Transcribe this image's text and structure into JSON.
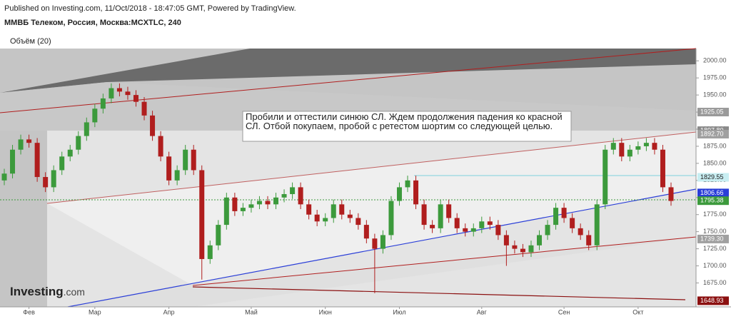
{
  "chart_data": {
    "type": "candlestick",
    "header": "Published on Investing.com, 11/Oct/2018 - 18:47:05 GMT, Powered by TradingView.",
    "title": "ММВБ Телеком, Россия, Москва:MCXTLC, 240",
    "subtitle": "Объём (20)",
    "annotation": "Пробили и оттестили синюю СЛ. Ждем продолжения падения ко красной СЛ. Отбой покупаем, пробой с ретестом шортим со следующей целью.",
    "logo": "Investing",
    "logo_suffix": ".com",
    "categories": [
      null,
      null,
      null,
      "Фев",
      null,
      null,
      null,
      null,
      null,
      null,
      null,
      "Мар",
      null,
      null,
      null,
      null,
      null,
      null,
      null,
      null,
      "Апр",
      null,
      null,
      null,
      null,
      null,
      null,
      null,
      null,
      null,
      "Май",
      null,
      null,
      null,
      null,
      null,
      null,
      null,
      null,
      "Июн",
      null,
      null,
      null,
      null,
      null,
      null,
      null,
      null,
      "Июл",
      null,
      null,
      null,
      null,
      null,
      null,
      null,
      null,
      null,
      "Авг",
      null,
      null,
      null,
      null,
      null,
      null,
      null,
      null,
      null,
      "Сен",
      null,
      null,
      null,
      null,
      null,
      null,
      null,
      null,
      "Окт",
      null,
      null,
      null,
      null
    ],
    "open": [
      1825,
      1835,
      1870,
      1885,
      1880,
      1830,
      1815,
      1840,
      1860,
      1870,
      1890,
      1910,
      1930,
      1945,
      1960,
      1955,
      1950,
      1940,
      1920,
      1890,
      1860,
      1825,
      1840,
      1870,
      1840,
      1710,
      1730,
      1760,
      1800,
      1780,
      1785,
      1790,
      1795,
      1790,
      1800,
      1805,
      1815,
      1790,
      1775,
      1765,
      1770,
      1790,
      1775,
      1770,
      1760,
      1740,
      1725,
      1745,
      1795,
      1815,
      1825,
      1790,
      1760,
      1755,
      1790,
      1770,
      1755,
      1750,
      1755,
      1765,
      1760,
      1745,
      1730,
      1725,
      1720,
      1730,
      1745,
      1760,
      1785,
      1770,
      1755,
      1745,
      1730,
      1790,
      1870,
      1880,
      1860,
      1870,
      1875,
      1880,
      1870,
      1815
    ],
    "high": [
      1842,
      1877,
      1892,
      1892,
      1887,
      1837,
      1847,
      1867,
      1877,
      1897,
      1917,
      1937,
      1952,
      1967,
      1967,
      1962,
      1957,
      1947,
      1927,
      1897,
      1867,
      1847,
      1877,
      1877,
      1847,
      1737,
      1767,
      1807,
      1807,
      1792,
      1797,
      1802,
      1802,
      1807,
      1812,
      1822,
      1822,
      1797,
      1782,
      1777,
      1797,
      1797,
      1782,
      1777,
      1767,
      1747,
      1752,
      1802,
      1822,
      1832,
      1832,
      1797,
      1767,
      1797,
      1797,
      1777,
      1762,
      1762,
      1772,
      1772,
      1767,
      1752,
      1737,
      1732,
      1737,
      1752,
      1767,
      1792,
      1792,
      1777,
      1762,
      1752,
      1797,
      1877,
      1887,
      1887,
      1877,
      1882,
      1887,
      1887,
      1877,
      1822
    ],
    "low": [
      1818,
      1828,
      1863,
      1873,
      1823,
      1808,
      1808,
      1833,
      1853,
      1863,
      1883,
      1903,
      1923,
      1938,
      1948,
      1943,
      1933,
      1913,
      1883,
      1853,
      1818,
      1818,
      1833,
      1833,
      1680,
      1703,
      1723,
      1753,
      1773,
      1773,
      1778,
      1783,
      1783,
      1783,
      1793,
      1798,
      1783,
      1768,
      1758,
      1758,
      1763,
      1768,
      1763,
      1753,
      1733,
      1660,
      1718,
      1738,
      1788,
      1808,
      1783,
      1753,
      1748,
      1748,
      1763,
      1748,
      1743,
      1743,
      1748,
      1753,
      1738,
      1700,
      1718,
      1713,
      1713,
      1723,
      1738,
      1753,
      1763,
      1748,
      1738,
      1723,
      1723,
      1783,
      1863,
      1853,
      1853,
      1863,
      1868,
      1863,
      1808,
      1788
    ],
    "close": [
      1835,
      1870,
      1885,
      1880,
      1830,
      1815,
      1840,
      1860,
      1870,
      1890,
      1910,
      1930,
      1945,
      1960,
      1955,
      1950,
      1940,
      1920,
      1890,
      1860,
      1825,
      1840,
      1870,
      1840,
      1710,
      1730,
      1760,
      1800,
      1780,
      1785,
      1790,
      1795,
      1790,
      1800,
      1805,
      1815,
      1790,
      1775,
      1765,
      1770,
      1790,
      1775,
      1770,
      1760,
      1740,
      1725,
      1745,
      1795,
      1815,
      1825,
      1790,
      1760,
      1755,
      1790,
      1770,
      1755,
      1750,
      1755,
      1765,
      1760,
      1745,
      1730,
      1725,
      1720,
      1730,
      1745,
      1760,
      1785,
      1770,
      1755,
      1745,
      1730,
      1790,
      1870,
      1880,
      1860,
      1870,
      1875,
      1880,
      1870,
      1815,
      1795
    ],
    "up_color": "#3c9a3c",
    "down_color": "#b01e1e",
    "ylim": [
      1640,
      2018
    ],
    "yticks": [
      {
        "value": 1675,
        "label": "1675.00"
      },
      {
        "value": 1700,
        "label": "1700.00"
      },
      {
        "value": 1725,
        "label": "1725.00"
      },
      {
        "value": 1750,
        "label": "1750.00"
      },
      {
        "value": 1775,
        "label": "1775.00"
      },
      {
        "value": 1800,
        "label": "1800.00"
      },
      {
        "value": 1825,
        "label": "1825.00"
      },
      {
        "value": 1850,
        "label": "1850.00"
      },
      {
        "value": 1875,
        "label": "1875.00"
      },
      {
        "value": 1900,
        "label": "1900.00"
      },
      {
        "value": 1925,
        "label": "1925.00"
      },
      {
        "value": 1950,
        "label": "1950.00"
      },
      {
        "value": 1975,
        "label": "1975.00"
      },
      {
        "value": 2000,
        "label": "2000.00"
      }
    ],
    "price_tags": [
      1925.05,
      {
        "value": 1897.8,
        "label": "1897.80"
      },
      {
        "value": 1892.7,
        "label": "1892.70"
      },
      1829.55,
      1806.66,
      1795.38,
      {
        "value": 1739.3,
        "label": "1739.30"
      },
      1648.93
    ],
    "price_tag_colors": [
      "#9a9a9a",
      "#8a8a8a",
      "#a0a0a0",
      "#c8eef2",
      "#2a3ed8",
      "#3c9a3c",
      "#a0a0a0",
      "#8b1010"
    ],
    "grid": false
  }
}
